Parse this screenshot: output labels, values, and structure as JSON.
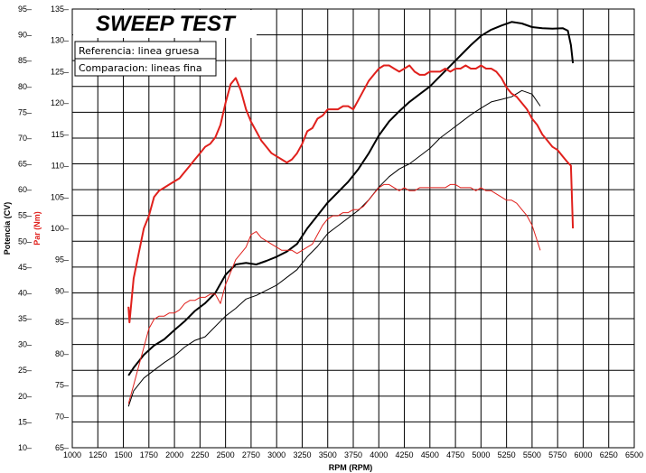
{
  "chart_data": {
    "type": "line",
    "title": "SWEEP TEST",
    "xlabel": "RPM (RPM)",
    "ylabel_left": "Potencia (CV)",
    "ylabel_right": "Par (Nm)",
    "xlim": [
      1000,
      6500
    ],
    "x_ticks": [
      1000,
      1250,
      1500,
      1750,
      2000,
      2250,
      2500,
      2750,
      3000,
      3250,
      3500,
      3750,
      4000,
      4250,
      4500,
      4750,
      5000,
      5250,
      5500,
      5750,
      6000,
      6250,
      6500
    ],
    "power_axis": {
      "ylim": [
        10,
        95
      ],
      "ticks": [
        95,
        90,
        85,
        80,
        75,
        70,
        65,
        60,
        55,
        50,
        45,
        40,
        35,
        30,
        25,
        20,
        15,
        10
      ]
    },
    "torque_axis": {
      "ylim": [
        65,
        135
      ],
      "ticks": [
        135,
        130,
        125,
        120,
        115,
        110,
        105,
        100,
        95,
        90,
        85,
        80,
        75,
        70,
        65
      ]
    },
    "grid": true,
    "legend": {
      "placement": "top-left",
      "entries": [
        "Referencia: linea gruesa",
        "Comparacion: lineas fina"
      ]
    },
    "colors": {
      "power": "#000000",
      "torque": "#e0201c",
      "grid": "#000000"
    },
    "series": [
      {
        "quantity": "power",
        "line": "thick",
        "axis": "power",
        "x": [
          1550,
          1600,
          1700,
          1800,
          1900,
          2000,
          2100,
          2200,
          2300,
          2400,
          2500,
          2600,
          2700,
          2800,
          2900,
          3000,
          3100,
          3200,
          3300,
          3400,
          3500,
          3600,
          3700,
          3800,
          3900,
          4000,
          4100,
          4200,
          4300,
          4400,
          4500,
          4600,
          4700,
          4800,
          4900,
          5000,
          5100,
          5200,
          5300,
          5400,
          5500,
          5600,
          5700,
          5800,
          5850,
          5880,
          5900
        ],
        "y": [
          24,
          25.5,
          28,
          29.8,
          31,
          32.8,
          34.5,
          36.5,
          38,
          40,
          43.5,
          45.5,
          45.8,
          45.5,
          46.2,
          47,
          48,
          49.5,
          52.5,
          55,
          57.5,
          59.5,
          61.5,
          64,
          67,
          70.5,
          73.2,
          75.2,
          77,
          78.5,
          80,
          82,
          84,
          86,
          88,
          89.8,
          91,
          91.8,
          92.5,
          92.2,
          91.5,
          91.3,
          91.2,
          91.3,
          90.8,
          88,
          84.5
        ]
      },
      {
        "quantity": "power",
        "line": "thin",
        "axis": "power",
        "x": [
          1550,
          1600,
          1700,
          1800,
          1900,
          2000,
          2100,
          2200,
          2300,
          2400,
          2500,
          2600,
          2700,
          2800,
          2900,
          3000,
          3100,
          3200,
          3300,
          3400,
          3500,
          3600,
          3700,
          3800,
          3900,
          4000,
          4100,
          4200,
          4300,
          4400,
          4500,
          4600,
          4700,
          4800,
          4900,
          5000,
          5100,
          5200,
          5300,
          5400,
          5500,
          5580
        ],
        "y": [
          18,
          21,
          23.5,
          25,
          26.5,
          27.8,
          29.5,
          30.8,
          31.5,
          33.5,
          35.5,
          37,
          38.8,
          39.5,
          40.5,
          41.5,
          43,
          44.5,
          47,
          49,
          51.5,
          53,
          54.5,
          56,
          58,
          60.5,
          62.5,
          64,
          65,
          66.5,
          68,
          70,
          71.5,
          73,
          74.5,
          75.8,
          77,
          77.5,
          78,
          79.2,
          78.5,
          76.2
        ]
      },
      {
        "quantity": "torque",
        "line": "thick",
        "axis": "torque",
        "x": [
          1550,
          1560,
          1600,
          1650,
          1700,
          1750,
          1800,
          1850,
          1900,
          1950,
          2000,
          2050,
          2100,
          2150,
          2200,
          2250,
          2300,
          2350,
          2400,
          2450,
          2500,
          2550,
          2600,
          2650,
          2700,
          2750,
          2800,
          2850,
          2900,
          2950,
          3000,
          3050,
          3100,
          3150,
          3200,
          3250,
          3300,
          3350,
          3400,
          3450,
          3500,
          3550,
          3600,
          3650,
          3700,
          3750,
          3800,
          3850,
          3900,
          3950,
          4000,
          4050,
          4100,
          4150,
          4200,
          4250,
          4300,
          4350,
          4400,
          4450,
          4500,
          4550,
          4600,
          4650,
          4700,
          4750,
          4800,
          4850,
          4900,
          4950,
          5000,
          5050,
          5100,
          5150,
          5200,
          5250,
          5300,
          5350,
          5400,
          5450,
          5500,
          5550,
          5600,
          5650,
          5700,
          5750,
          5800,
          5850,
          5880,
          5900
        ],
        "y": [
          87.5,
          85,
          92,
          96,
          100,
          102,
          105,
          106,
          106.5,
          107,
          107.5,
          108,
          109,
          110,
          111,
          112,
          113,
          113.5,
          114.5,
          116.5,
          120,
          123,
          124,
          122,
          119,
          117,
          115.5,
          114,
          113,
          112,
          111.5,
          111,
          110.5,
          111,
          112,
          113.5,
          115.5,
          116,
          117.5,
          118,
          119,
          119,
          119,
          119.5,
          119.5,
          119,
          120.5,
          122,
          123.5,
          124.5,
          125.5,
          126,
          126,
          125.5,
          125,
          125.5,
          126,
          125,
          124.5,
          124.5,
          125,
          125,
          125,
          125.5,
          125,
          125.5,
          125.5,
          126,
          125.5,
          125.5,
          126,
          125.5,
          125.5,
          125,
          124,
          122.5,
          121.5,
          121,
          120,
          119,
          117.5,
          116.5,
          115,
          114,
          113,
          112.5,
          111.5,
          110.5,
          110,
          100
        ]
      },
      {
        "quantity": "torque",
        "line": "thin",
        "axis": "torque",
        "x": [
          1550,
          1600,
          1650,
          1700,
          1750,
          1800,
          1850,
          1900,
          1950,
          2000,
          2050,
          2100,
          2150,
          2200,
          2250,
          2300,
          2350,
          2400,
          2450,
          2500,
          2550,
          2600,
          2650,
          2700,
          2750,
          2800,
          2850,
          2900,
          2950,
          3000,
          3050,
          3100,
          3150,
          3200,
          3250,
          3300,
          3350,
          3400,
          3450,
          3500,
          3550,
          3600,
          3650,
          3700,
          3750,
          3800,
          3850,
          3900,
          3950,
          4000,
          4050,
          4100,
          4150,
          4200,
          4250,
          4300,
          4350,
          4400,
          4450,
          4500,
          4550,
          4600,
          4650,
          4700,
          4750,
          4800,
          4850,
          4900,
          4950,
          5000,
          5050,
          5100,
          5150,
          5200,
          5250,
          5300,
          5350,
          5400,
          5450,
          5500,
          5550,
          5580
        ],
        "y": [
          72,
          75,
          78,
          81,
          84,
          85.5,
          86,
          86,
          86.5,
          86.5,
          87,
          88,
          88.5,
          88.5,
          89,
          89,
          89.5,
          89.5,
          88,
          91,
          93,
          95,
          96,
          97,
          99,
          99.5,
          98.5,
          98,
          97.5,
          97,
          96.5,
          96.5,
          96.5,
          96,
          96.5,
          97,
          97.5,
          99,
          100.5,
          101.5,
          102,
          102,
          102.5,
          102.5,
          103,
          103,
          103.5,
          104.5,
          105.5,
          106.5,
          107,
          107,
          106.5,
          106,
          106.5,
          106,
          106,
          106.5,
          106.5,
          106.5,
          106.5,
          106.5,
          106.5,
          107,
          107,
          106.5,
          106.5,
          106.5,
          106,
          106.5,
          106,
          106,
          105.5,
          105,
          104.5,
          104.5,
          104,
          103,
          102,
          100.5,
          98,
          96.5
        ]
      }
    ]
  }
}
